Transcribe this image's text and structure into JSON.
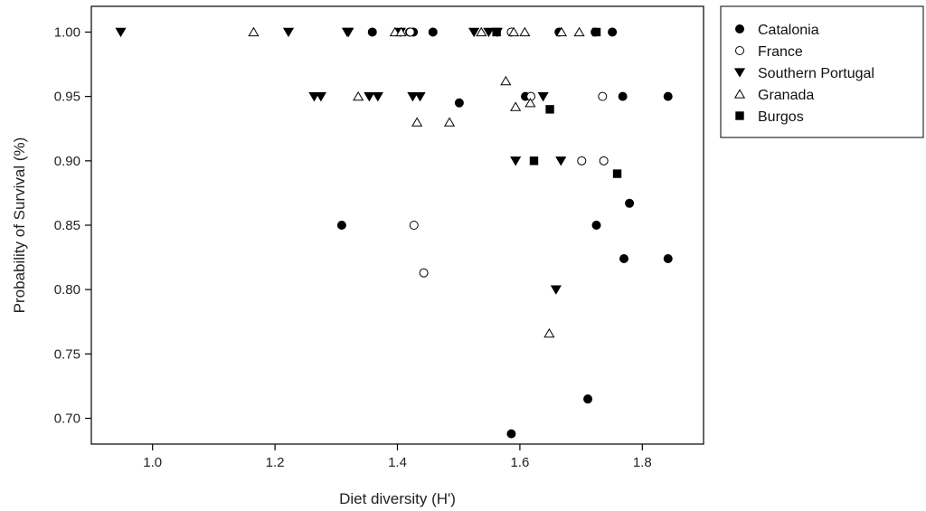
{
  "chart_data": {
    "type": "scatter",
    "xlabel": "Diet diversity (H')",
    "ylabel": "Probability of Survival (%)",
    "xlim": [
      0.9,
      1.9
    ],
    "ylim": [
      0.68,
      1.02
    ],
    "xticks": [
      "1.0",
      "1.2",
      "1.4",
      "1.6",
      "1.8"
    ],
    "xtick_values": [
      1.0,
      1.2,
      1.4,
      1.6,
      1.8
    ],
    "yticks": [
      "0.70",
      "0.75",
      "0.80",
      "0.85",
      "0.90",
      "0.95",
      "1.00"
    ],
    "ytick_values": [
      0.7,
      0.75,
      0.8,
      0.85,
      0.9,
      0.95,
      1.0
    ],
    "grid": false,
    "legend_position": "outside-top-right",
    "series": [
      {
        "name": "Catalonia",
        "marker": "filled-circle",
        "color": "#000000",
        "points": [
          [
            1.359,
            1.0
          ],
          [
            1.42,
            1.0
          ],
          [
            1.426,
            1.0
          ],
          [
            1.458,
            1.0
          ],
          [
            1.664,
            1.0
          ],
          [
            1.723,
            1.0
          ],
          [
            1.751,
            1.0
          ],
          [
            1.501,
            0.945
          ],
          [
            1.609,
            0.95
          ],
          [
            1.768,
            0.95
          ],
          [
            1.842,
            0.95
          ],
          [
            1.309,
            0.85
          ],
          [
            1.725,
            0.85
          ],
          [
            1.779,
            0.867
          ],
          [
            1.77,
            0.824
          ],
          [
            1.842,
            0.824
          ],
          [
            1.711,
            0.715
          ],
          [
            1.586,
            0.688
          ]
        ]
      },
      {
        "name": "France",
        "marker": "open-circle",
        "color": "#000000",
        "points": [
          [
            1.421,
            1.0
          ],
          [
            1.586,
            1.0
          ],
          [
            1.618,
            0.95
          ],
          [
            1.735,
            0.95
          ],
          [
            1.701,
            0.9
          ],
          [
            1.737,
            0.9
          ],
          [
            1.427,
            0.85
          ],
          [
            1.443,
            0.813
          ]
        ]
      },
      {
        "name": "Southern Portugal",
        "marker": "filled-triangle-down",
        "color": "#000000",
        "points": [
          [
            0.948,
            1.0
          ],
          [
            1.222,
            1.0
          ],
          [
            1.318,
            1.0
          ],
          [
            1.32,
            1.0
          ],
          [
            1.405,
            1.0
          ],
          [
            1.525,
            1.0
          ],
          [
            1.549,
            1.0
          ],
          [
            1.563,
            1.0
          ],
          [
            1.264,
            0.95
          ],
          [
            1.275,
            0.95
          ],
          [
            1.354,
            0.95
          ],
          [
            1.368,
            0.95
          ],
          [
            1.425,
            0.95
          ],
          [
            1.437,
            0.95
          ],
          [
            1.638,
            0.95
          ],
          [
            1.593,
            0.9
          ],
          [
            1.667,
            0.9
          ],
          [
            1.659,
            0.8
          ]
        ]
      },
      {
        "name": "Granada",
        "marker": "open-triangle-up",
        "color": "#000000",
        "points": [
          [
            1.165,
            1.0
          ],
          [
            1.396,
            1.0
          ],
          [
            1.406,
            1.0
          ],
          [
            1.537,
            1.0
          ],
          [
            1.59,
            1.0
          ],
          [
            1.608,
            1.0
          ],
          [
            1.668,
            1.0
          ],
          [
            1.697,
            1.0
          ],
          [
            1.577,
            0.962
          ],
          [
            1.336,
            0.95
          ],
          [
            1.593,
            0.942
          ],
          [
            1.617,
            0.945
          ],
          [
            1.432,
            0.93
          ],
          [
            1.485,
            0.93
          ],
          [
            1.648,
            0.766
          ]
        ]
      },
      {
        "name": "Burgos",
        "marker": "filled-square",
        "color": "#000000",
        "points": [
          [
            1.562,
            1.0
          ],
          [
            1.725,
            1.0
          ],
          [
            1.649,
            0.94
          ],
          [
            1.623,
            0.9
          ],
          [
            1.759,
            0.89
          ]
        ]
      }
    ]
  }
}
